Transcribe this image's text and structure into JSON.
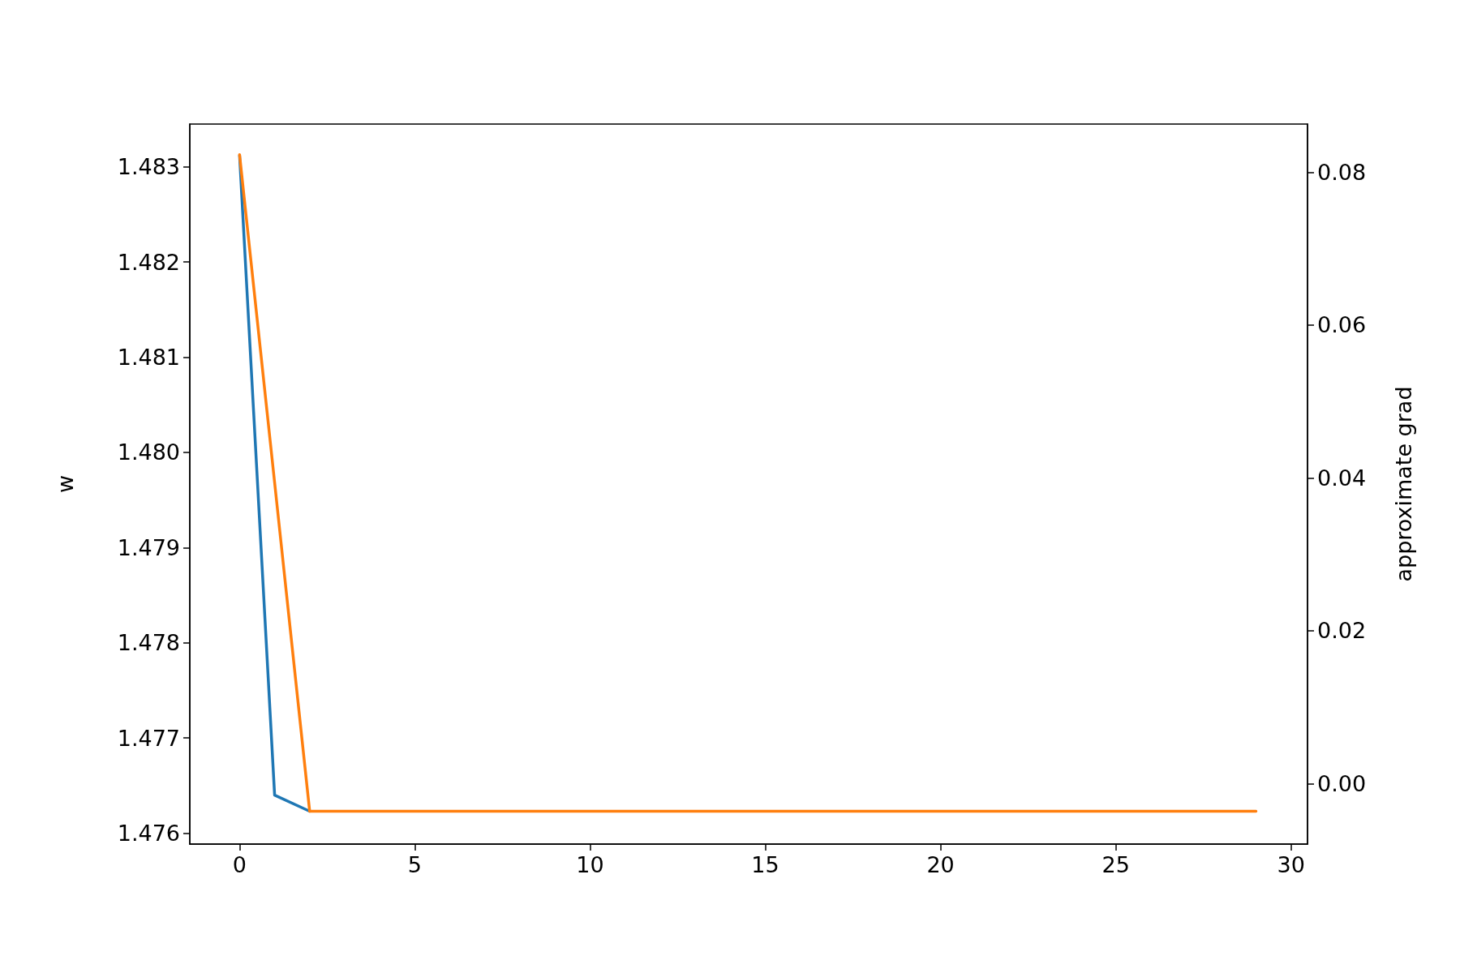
{
  "chart_data": {
    "type": "line",
    "x": [
      0,
      1,
      2,
      3,
      4,
      5,
      6,
      7,
      8,
      9,
      10,
      11,
      12,
      13,
      14,
      15,
      16,
      17,
      18,
      19,
      20,
      21,
      22,
      23,
      24,
      25,
      26,
      27,
      28,
      29
    ],
    "series": [
      {
        "color": "#1f77b4",
        "values": [
          1.48312,
          1.4764,
          1.47623,
          null,
          null,
          null,
          null,
          null,
          null,
          null,
          null,
          null,
          null,
          null,
          null,
          null,
          null,
          null,
          null,
          null,
          null,
          null,
          null,
          null,
          null,
          null,
          null,
          null,
          null,
          null
        ]
      },
      {
        "color": "#ff7f0e",
        "axis": "y2",
        "values": [
          0.0823,
          0.0394,
          -0.0036,
          -0.0036,
          -0.0036,
          -0.0036,
          -0.0036,
          -0.0036,
          -0.0036,
          -0.0036,
          -0.0036,
          -0.0036,
          -0.0036,
          -0.0036,
          -0.0036,
          -0.0036,
          -0.0036,
          -0.0036,
          -0.0036,
          -0.0036,
          -0.0036,
          -0.0036,
          -0.0036,
          -0.0036,
          -0.0036,
          -0.0036,
          -0.0036,
          -0.0036,
          -0.0036,
          -0.0036
        ]
      }
    ],
    "ylabel": "w",
    "y2label": "approximate grad",
    "xlim": [
      -1.42,
      30.47
    ],
    "xticks": [
      0,
      5,
      10,
      15,
      20,
      25,
      30
    ],
    "ylim": [
      1.475885,
      1.48345
    ],
    "yticks": [
      1.476,
      1.477,
      1.478,
      1.479,
      {
        "value": 1.48,
        "label": "1.480"
      },
      1.481,
      1.482,
      1.483
    ],
    "y2lim": [
      -0.0079,
      0.0863
    ],
    "y2ticks": [
      {
        "value": 0,
        "label": "0.00"
      },
      {
        "value": 0.02,
        "label": "0.02"
      },
      {
        "value": 0.04,
        "label": "0.04"
      },
      {
        "value": 0.06,
        "label": "0.06"
      },
      {
        "value": 0.08,
        "label": "0.08"
      }
    ],
    "grid": false,
    "marker": "none",
    "line_style": "solid"
  }
}
